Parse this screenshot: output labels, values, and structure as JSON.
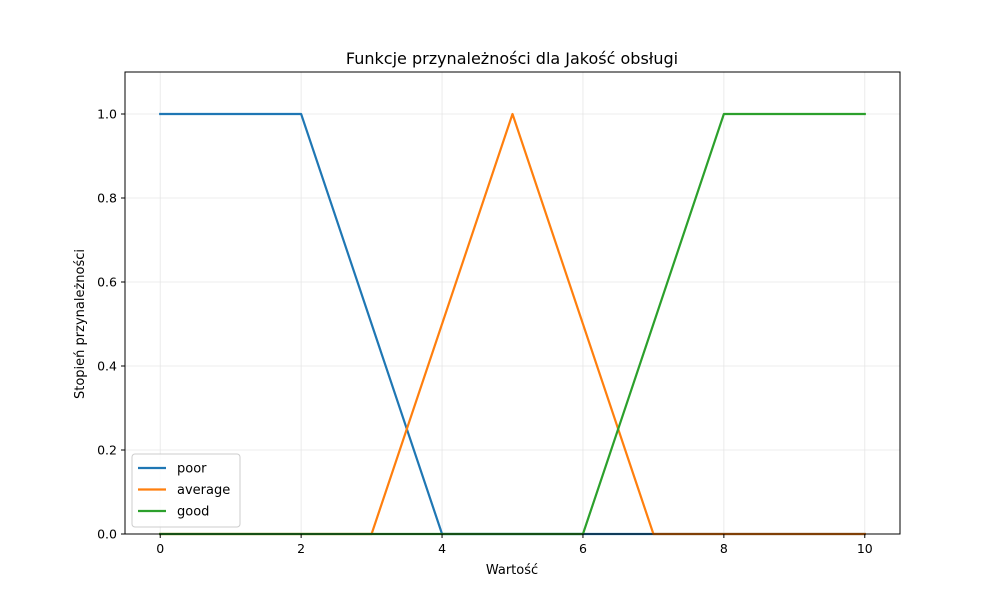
{
  "chart_data": {
    "type": "line",
    "title": "Funkcje przynależności dla Jakość obsługi",
    "xlabel": "Wartość",
    "ylabel": "Stopień przynależności",
    "xlim": [
      -0.5,
      10.5
    ],
    "ylim": [
      0,
      1.1
    ],
    "xticks": [
      0,
      2,
      4,
      6,
      8,
      10
    ],
    "yticks": [
      0.0,
      0.2,
      0.4,
      0.6,
      0.8,
      1.0
    ],
    "xtick_labels": [
      "0",
      "2",
      "4",
      "6",
      "8",
      "10"
    ],
    "ytick_labels": [
      "0.0",
      "0.2",
      "0.4",
      "0.6",
      "0.8",
      "1.0"
    ],
    "grid": true,
    "legend_position": "lower-left",
    "series": [
      {
        "name": "poor",
        "color": "#1f77b4",
        "x": [
          0,
          2,
          4,
          10
        ],
        "y": [
          1,
          1,
          0,
          0
        ]
      },
      {
        "name": "average",
        "color": "#ff7f0e",
        "x": [
          0,
          3,
          5,
          7,
          10
        ],
        "y": [
          0,
          0,
          1,
          0,
          0
        ]
      },
      {
        "name": "good",
        "color": "#2ca02c",
        "x": [
          0,
          6,
          8,
          10
        ],
        "y": [
          0,
          0,
          1,
          1
        ]
      }
    ]
  }
}
